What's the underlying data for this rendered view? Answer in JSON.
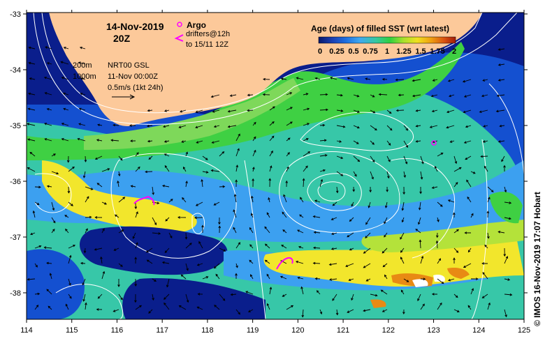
{
  "map": {
    "date": "14-Nov-2019",
    "time": "20Z",
    "x_ticks": [
      "114",
      "115",
      "116",
      "117",
      "118",
      "119",
      "120",
      "121",
      "122",
      "123",
      "124",
      "125"
    ],
    "y_ticks": [
      "-33",
      "-34",
      "-35",
      "-36",
      "-37",
      "-38"
    ],
    "legend": {
      "argo_label": "Argo",
      "drifters_label": "drifters@12h",
      "drifters_sub": "to 15/11 12Z"
    },
    "info": {
      "depth_200": "200m",
      "depth_1000": "1000m",
      "product": "NRT00 GSL",
      "product_date": "11-Nov 00:00Z",
      "scale": "0.5m/s (1kt 24h)"
    },
    "colorbar": {
      "title": "Age (days) of filled SST (wrt latest)",
      "labels": [
        "0",
        "0.25",
        "0.5",
        "0.75",
        "1",
        "1.25",
        "1.5",
        "1.75",
        "2"
      ],
      "colors": [
        "#08186b",
        "#1a3fb2",
        "#1f6fe0",
        "#3fa8f0",
        "#35c8a0",
        "#2fd040",
        "#a8e02c",
        "#f0e020",
        "#f0a010",
        "#d85010",
        "#a01c08"
      ]
    },
    "credit": "© IMOS 16-Nov-2019 17:07 Hobart"
  },
  "colors": {
    "land": "#fcc99a",
    "deep_blue": "#0a1e8c",
    "blue": "#1450d0",
    "light_blue": "#3ca0f0",
    "teal": "#37c7a8",
    "green": "#3fd043",
    "yellow_green": "#b4e23a",
    "yellow": "#f2e62c",
    "orange": "#e88a14",
    "magenta": "#ff00ff"
  }
}
